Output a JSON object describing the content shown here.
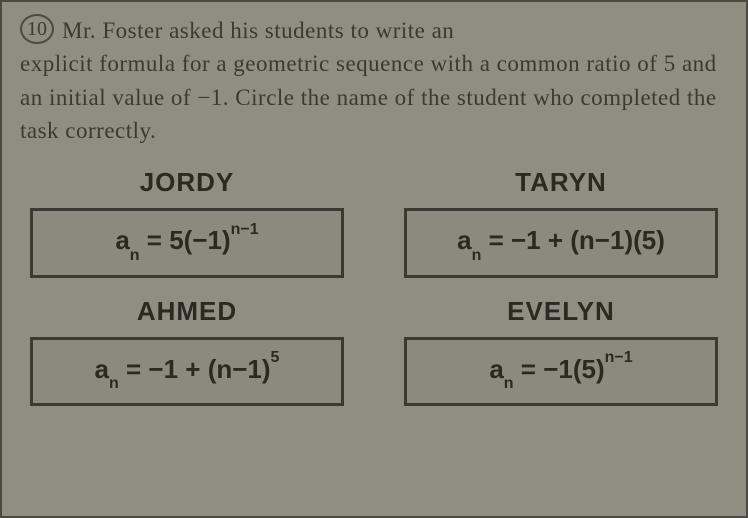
{
  "question": {
    "number": "10",
    "text_start": "Mr. Foster asked his students to write an",
    "text_rest": "explicit formula for a geometric sequence with a common ratio of 5 and an initial value of −1. Circle the name of the student who completed the task correctly."
  },
  "answers": [
    {
      "name": "JORDY",
      "formula_a": "a",
      "formula_sub": "n",
      "formula_eq": " = 5(−1)",
      "formula_sup": "n−1",
      "formula_tail": ""
    },
    {
      "name": "TARYN",
      "formula_a": "a",
      "formula_sub": "n",
      "formula_eq": " = −1 + (n−1)(5)",
      "formula_sup": "",
      "formula_tail": ""
    },
    {
      "name": "AHMED",
      "formula_a": "a",
      "formula_sub": "n",
      "formula_eq": " = −1 + (n−1)",
      "formula_sup": "5",
      "formula_tail": ""
    },
    {
      "name": "EVELYN",
      "formula_a": "a",
      "formula_sub": "n",
      "formula_eq": " = −1(5)",
      "formula_sup": "n−1",
      "formula_tail": ""
    }
  ],
  "colors": {
    "background": "#8e8e82",
    "border": "#3a3a32",
    "text": "#3a3a32"
  }
}
